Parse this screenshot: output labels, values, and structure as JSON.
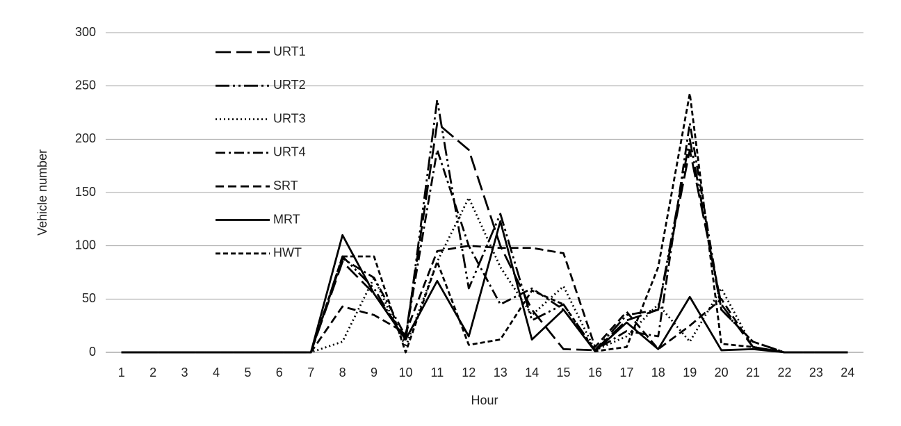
{
  "chart_data": {
    "type": "line",
    "x_label": "Hour",
    "y_label": "Vehicle number",
    "x": [
      1,
      2,
      3,
      4,
      5,
      6,
      7,
      8,
      9,
      10,
      11,
      12,
      13,
      14,
      15,
      16,
      17,
      18,
      19,
      20,
      21,
      22,
      23,
      24
    ],
    "xlim": [
      0.5,
      24.5
    ],
    "xticks": [
      1,
      2,
      3,
      4,
      5,
      6,
      7,
      8,
      9,
      10,
      11,
      12,
      13,
      14,
      15,
      16,
      17,
      18,
      19,
      20,
      21,
      22,
      23,
      24
    ],
    "ylim": [
      0,
      300
    ],
    "yticks": [
      0,
      50,
      100,
      150,
      200,
      250,
      300
    ],
    "grid": true,
    "legend": "upper-left",
    "series": [
      {
        "name": "URT1",
        "color": "#000000",
        "dash": "22,8",
        "values": [
          0,
          0,
          0,
          0,
          0,
          0,
          0,
          85,
          55,
          15,
          215,
          190,
          100,
          40,
          3,
          2,
          30,
          40,
          190,
          45,
          5,
          0,
          0,
          0
        ]
      },
      {
        "name": "URT2",
        "color": "#000000",
        "dash": "20,5,3,5,3,5",
        "values": [
          0,
          0,
          0,
          0,
          0,
          0,
          0,
          90,
          60,
          10,
          237,
          60,
          130,
          30,
          45,
          2,
          35,
          40,
          200,
          40,
          10,
          0,
          0,
          0
        ]
      },
      {
        "name": "URT3",
        "color": "#000000",
        "dash": "2,4",
        "values": [
          0,
          0,
          0,
          0,
          0,
          0,
          0,
          10,
          70,
          5,
          85,
          145,
          80,
          35,
          62,
          2,
          15,
          45,
          10,
          60,
          5,
          0,
          0,
          0
        ]
      },
      {
        "name": "URT4",
        "color": "#000000",
        "dash": "14,5,3,5",
        "values": [
          0,
          0,
          0,
          0,
          0,
          0,
          0,
          88,
          70,
          15,
          190,
          100,
          45,
          60,
          40,
          2,
          20,
          15,
          215,
          40,
          10,
          0,
          0,
          0
        ]
      },
      {
        "name": "SRT",
        "color": "#000000",
        "dash": "12,6",
        "values": [
          0,
          0,
          0,
          0,
          0,
          0,
          0,
          43,
          35,
          18,
          95,
          100,
          98,
          98,
          93,
          5,
          38,
          3,
          25,
          50,
          5,
          0,
          0,
          0
        ]
      },
      {
        "name": "MRT",
        "color": "#000000",
        "dash": "none",
        "values": [
          0,
          0,
          0,
          0,
          0,
          0,
          0,
          110,
          55,
          12,
          67,
          15,
          123,
          12,
          40,
          1,
          28,
          3,
          52,
          2,
          3,
          0,
          0,
          0
        ]
      },
      {
        "name": "HWT",
        "color": "#000000",
        "dash": "7,4",
        "values": [
          0,
          0,
          0,
          0,
          0,
          0,
          0,
          90,
          90,
          0,
          85,
          7,
          12,
          58,
          45,
          1,
          5,
          80,
          243,
          8,
          5,
          0,
          0,
          0
        ]
      }
    ]
  }
}
